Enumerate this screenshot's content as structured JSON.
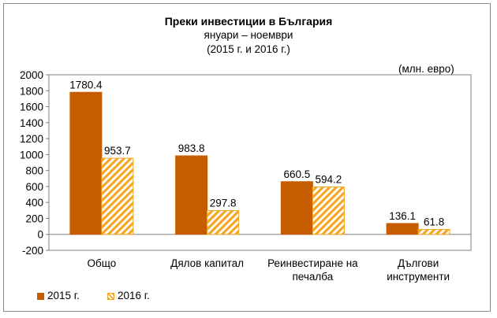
{
  "chart_data": {
    "type": "bar",
    "title": "Преки  инвестиции в България",
    "subtitle": [
      "януари – ноември",
      "(2015 г. и 2016 г.)"
    ],
    "unit": "(млн. евро)",
    "categories": [
      [
        "Общо"
      ],
      [
        "Дялов капитал"
      ],
      [
        "Реинвестиране на",
        "печалба"
      ],
      [
        "Дългови",
        "инструменти"
      ]
    ],
    "series": [
      {
        "name": "2015 г.",
        "values": [
          1780.4,
          983.8,
          660.5,
          136.1
        ],
        "labels": [
          "1780.4",
          "983.8",
          "660.5",
          "136.1"
        ],
        "color": "#c65c00",
        "pattern": "solid"
      },
      {
        "name": "2016 г.",
        "values": [
          953.7,
          297.8,
          594.2,
          61.8
        ],
        "labels": [
          "953.7",
          "297.8",
          "594.2",
          "61.8"
        ],
        "color": "#f5a623",
        "pattern": "diagonal-stripes"
      }
    ],
    "ylim": [
      -200,
      2000
    ],
    "yticks": [
      -200,
      0,
      200,
      400,
      600,
      800,
      1000,
      1200,
      1400,
      1600,
      1800,
      2000
    ],
    "grid": false,
    "legend_position": "bottom-left"
  }
}
